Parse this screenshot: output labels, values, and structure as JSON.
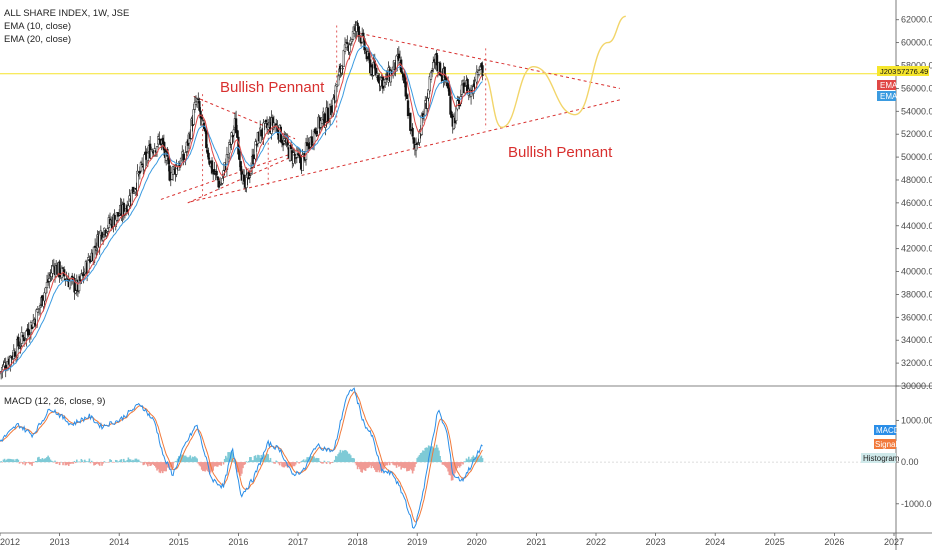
{
  "chart_data": {
    "type": "candlestick",
    "legend": {
      "symbol_line": "ALL SHARE INDEX, 1W, JSE",
      "ema10": "EMA (10, close)",
      "ema20": "EMA (20, close)",
      "macd": "MACD (12, 26, close, 9)"
    },
    "last_price": {
      "prefix": "J203",
      "value": "57276.49",
      "numeric": 57276.49
    },
    "tags": {
      "ema1": "EMA",
      "ema2": "EMA",
      "macd": "MACD",
      "signal": "Signal",
      "histogram": "Histogram"
    },
    "annotations": [
      "Bullish Pennant",
      "Bullish Pennant"
    ],
    "price_axis": {
      "ticks": [
        "30000.00",
        "32000.00",
        "34000.00",
        "36000.00",
        "38000.00",
        "40000.00",
        "42000.00",
        "44000.00",
        "46000.00",
        "48000.00",
        "50000.00",
        "52000.00",
        "54000.00",
        "56000.00",
        "58000.00",
        "60000.00",
        "62000.00"
      ],
      "range": [
        30000,
        63200
      ]
    },
    "macd_axis": {
      "ticks": [
        "1000.00",
        "0.00",
        "-1000.00"
      ],
      "range": [
        -1700,
        1800
      ]
    },
    "time_axis": {
      "ticks": [
        "2012",
        "2013",
        "2014",
        "2015",
        "2016",
        "2017",
        "2018",
        "2019",
        "2020",
        "2021",
        "2022",
        "2023",
        "2024",
        "2025",
        "2026",
        "2027"
      ],
      "range": [
        2012.0,
        2027.0
      ],
      "tick_positions": [
        2012.0,
        2013.0,
        2014.0,
        2015.0,
        2016.0,
        2017.0,
        2018.0,
        2019.0,
        2020.0,
        2021.0,
        2022.0,
        2023.0,
        2024.0,
        2025.0,
        2026.0,
        2027.0
      ]
    },
    "price_anchors": [
      [
        2012.0,
        31200
      ],
      [
        2012.3,
        33500
      ],
      [
        2012.6,
        36000
      ],
      [
        2012.9,
        40500
      ],
      [
        2013.3,
        38500
      ],
      [
        2013.7,
        43500
      ],
      [
        2014.1,
        45500
      ],
      [
        2014.5,
        50500
      ],
      [
        2014.7,
        51500
      ],
      [
        2014.85,
        48500
      ],
      [
        2015.1,
        50000
      ],
      [
        2015.3,
        55000
      ],
      [
        2015.55,
        49000
      ],
      [
        2015.7,
        47500
      ],
      [
        2015.95,
        53000
      ],
      [
        2016.1,
        47000
      ],
      [
        2016.35,
        52000
      ],
      [
        2016.6,
        53000
      ],
      [
        2016.85,
        50500
      ],
      [
        2017.05,
        49500
      ],
      [
        2017.3,
        52500
      ],
      [
        2017.55,
        54000
      ],
      [
        2017.75,
        58500
      ],
      [
        2017.85,
        60000
      ],
      [
        2018.0,
        61500
      ],
      [
        2018.2,
        58000
      ],
      [
        2018.45,
        56500
      ],
      [
        2018.7,
        58500
      ],
      [
        2018.85,
        54000
      ],
      [
        2018.95,
        50500
      ],
      [
        2019.1,
        53500
      ],
      [
        2019.3,
        58500
      ],
      [
        2019.5,
        56500
      ],
      [
        2019.6,
        53000
      ],
      [
        2019.8,
        56500
      ],
      [
        2019.9,
        55500
      ],
      [
        2020.05,
        58500
      ],
      [
        2020.1,
        57276
      ]
    ],
    "projection": [
      [
        2020.1,
        57300
      ],
      [
        2020.42,
        52600
      ],
      [
        2020.95,
        57900
      ],
      [
        2021.65,
        53700
      ],
      [
        2022.2,
        60000
      ],
      [
        2022.5,
        62300
      ]
    ],
    "pennant_1": {
      "upper": [
        [
          2015.25,
          55300
        ],
        [
          2016.95,
          51600
        ]
      ],
      "lower": [
        [
          2014.7,
          46300
        ],
        [
          2016.95,
          50400
        ]
      ],
      "lower2": [
        [
          2015.15,
          46000
        ],
        [
          2017.1,
          50500
        ]
      ],
      "box": {
        "start": 2015.4,
        "end": 2016.5
      }
    },
    "pennant_2": {
      "upper": [
        [
          2018.05,
          60800
        ],
        [
          2022.4,
          56000
        ]
      ],
      "lower": [
        [
          2015.2,
          46100
        ],
        [
          2022.4,
          55000
        ]
      ],
      "box": {
        "start": 2017.65,
        "end": 2020.15
      }
    },
    "macd_anchors": [
      [
        2012.0,
        500
      ],
      [
        2012.3,
        900
      ],
      [
        2012.55,
        650
      ],
      [
        2012.85,
        1300
      ],
      [
        2013.2,
        900
      ],
      [
        2013.5,
        1100
      ],
      [
        2013.7,
        850
      ],
      [
        2014.0,
        1000
      ],
      [
        2014.35,
        1400
      ],
      [
        2014.6,
        950
      ],
      [
        2014.75,
        100
      ],
      [
        2014.9,
        -300
      ],
      [
        2015.1,
        400
      ],
      [
        2015.3,
        900
      ],
      [
        2015.55,
        -400
      ],
      [
        2015.75,
        -600
      ],
      [
        2015.9,
        300
      ],
      [
        2016.05,
        -800
      ],
      [
        2016.25,
        -400
      ],
      [
        2016.5,
        450
      ],
      [
        2016.7,
        300
      ],
      [
        2016.9,
        -300
      ],
      [
        2017.1,
        -200
      ],
      [
        2017.3,
        400
      ],
      [
        2017.6,
        250
      ],
      [
        2017.8,
        1500
      ],
      [
        2017.93,
        1800
      ],
      [
        2018.1,
        950
      ],
      [
        2018.25,
        600
      ],
      [
        2018.4,
        -200
      ],
      [
        2018.6,
        -300
      ],
      [
        2018.8,
        -900
      ],
      [
        2018.95,
        -1650
      ],
      [
        2019.1,
        -700
      ],
      [
        2019.25,
        500
      ],
      [
        2019.35,
        1250
      ],
      [
        2019.5,
        700
      ],
      [
        2019.6,
        -300
      ],
      [
        2019.75,
        -450
      ],
      [
        2019.9,
        -100
      ],
      [
        2020.0,
        150
      ],
      [
        2020.1,
        450
      ]
    ]
  }
}
